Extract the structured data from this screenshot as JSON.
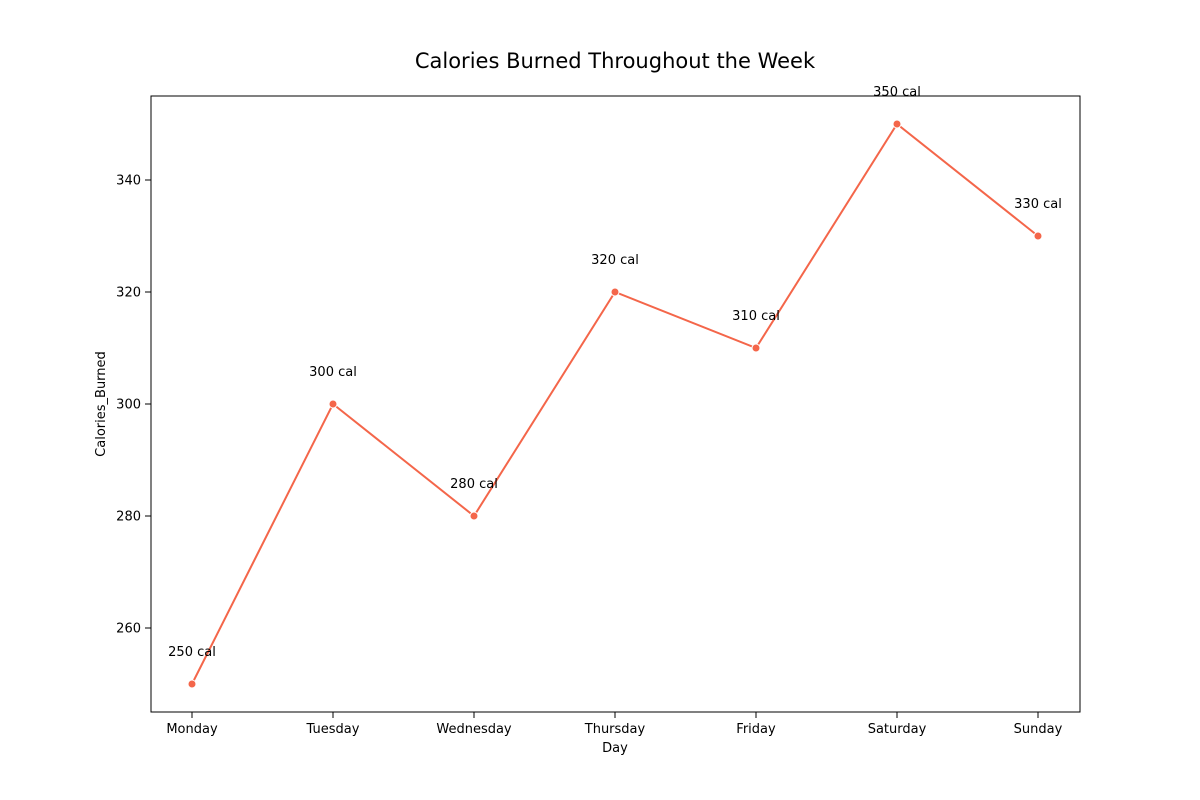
{
  "chart_data": {
    "type": "line",
    "title": "Calories Burned Throughout the Week",
    "xlabel": "Day",
    "ylabel": "Calories_Burned",
    "categories": [
      "Monday",
      "Tuesday",
      "Wednesday",
      "Thursday",
      "Friday",
      "Saturday",
      "Sunday"
    ],
    "series": [
      {
        "values": [
          250,
          300,
          280,
          320,
          310,
          350,
          330
        ]
      }
    ],
    "data_labels": [
      "250 cal",
      "300 cal",
      "280 cal",
      "320 cal",
      "310 cal",
      "350 cal",
      "330 cal"
    ],
    "ylim": [
      245,
      355
    ],
    "yticks": [
      260,
      280,
      300,
      320,
      340
    ],
    "grid": false,
    "colors": {
      "line": "#f4664a",
      "axis": "#000000"
    }
  }
}
